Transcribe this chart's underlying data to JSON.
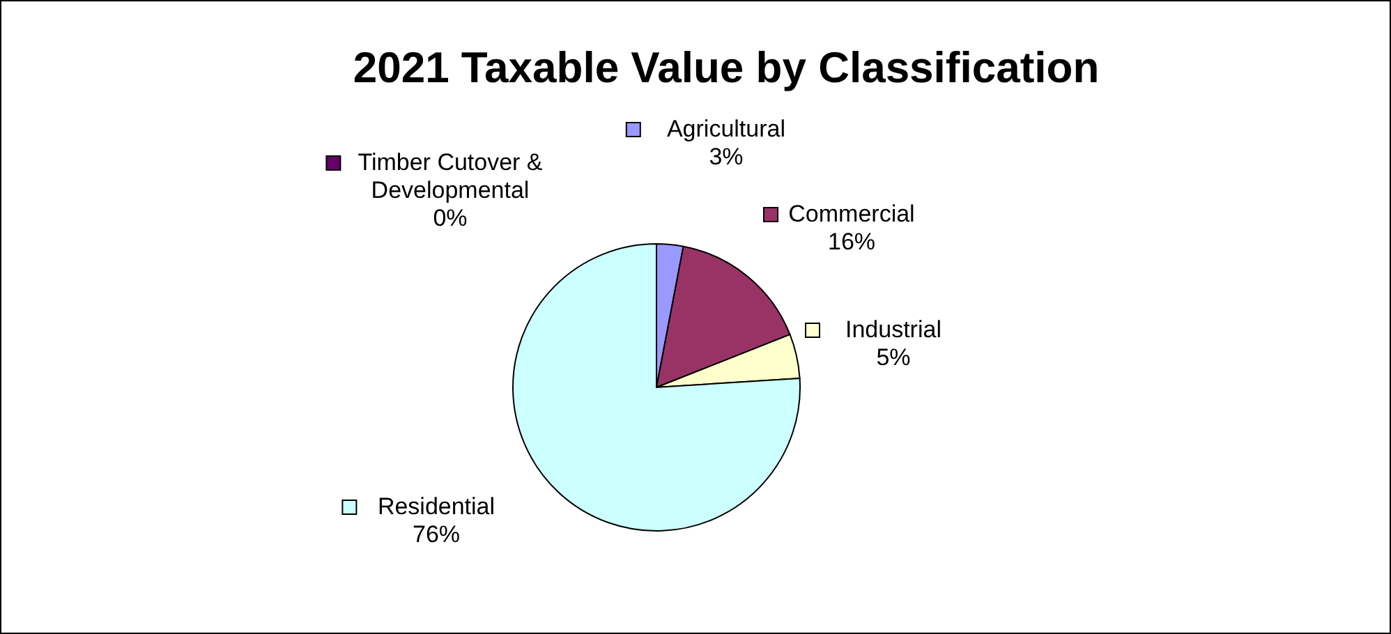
{
  "chart_data": {
    "type": "pie",
    "title": "2021 Taxable Value by Classification",
    "categories": [
      "Agricultural",
      "Commercial",
      "Industrial",
      "Residential",
      "Timber Cutover & Developmental"
    ],
    "values": [
      3,
      16,
      5,
      76,
      0
    ],
    "value_labels": [
      "3%",
      "16%",
      "5%",
      "76%",
      "0%"
    ],
    "colors": [
      "#9999ff",
      "#993366",
      "#ffffcc",
      "#ccffff",
      "#660066"
    ],
    "legend": "top"
  }
}
